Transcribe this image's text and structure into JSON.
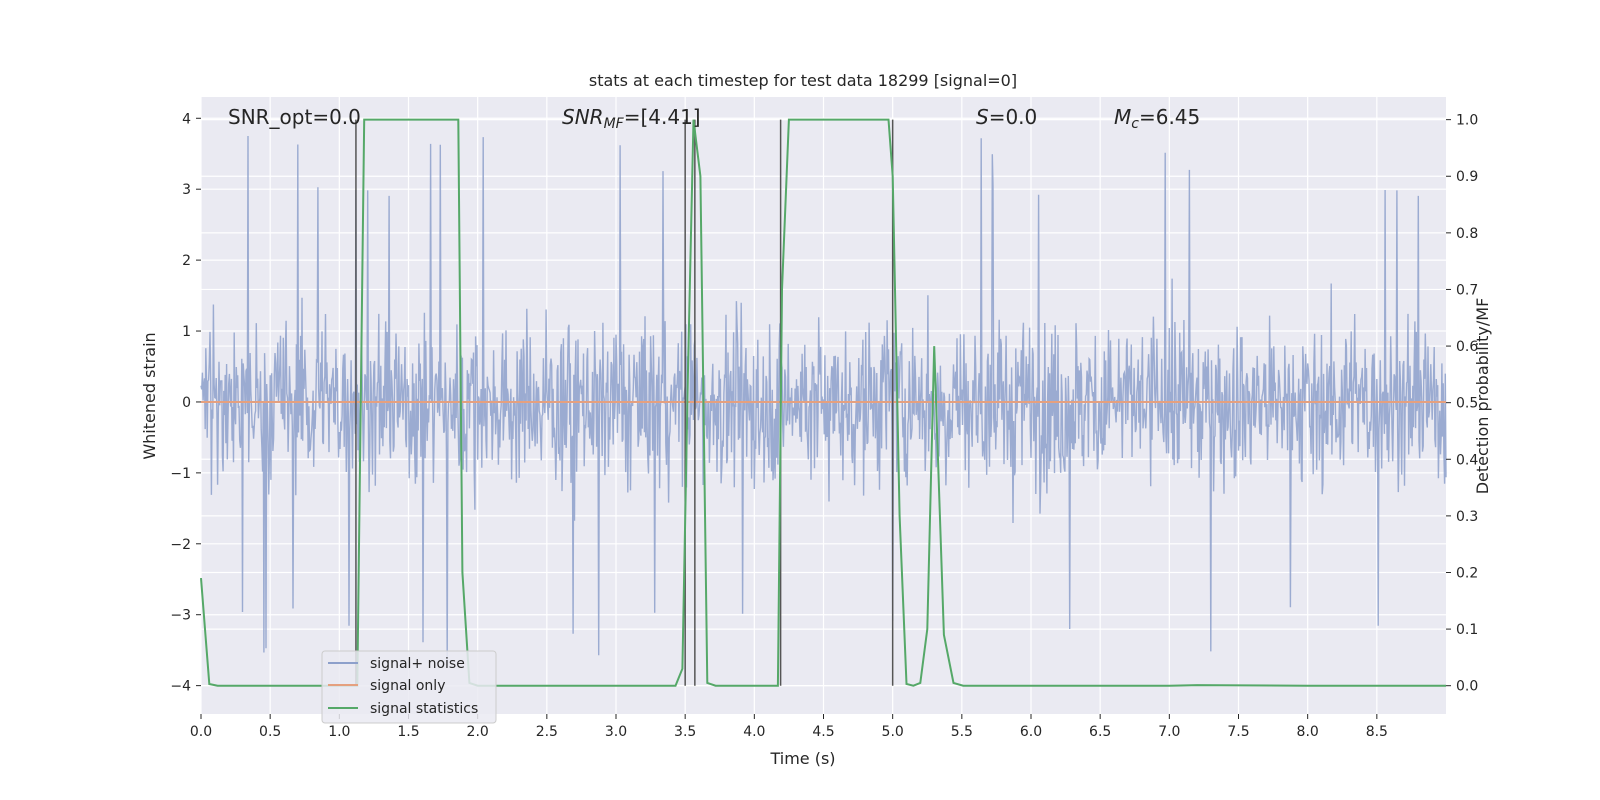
{
  "chart_data": {
    "type": "line",
    "title": "stats at each timestep for test data 18299 [signal=0]",
    "xlabel": "Time (s)",
    "ylabel_left": "Whitened strain",
    "ylabel_right": "Detection probability/MF",
    "xlim": [
      0.0,
      9.0
    ],
    "ylim_left": [
      -4.4,
      4.3
    ],
    "ylim_right": [
      -0.05,
      1.04
    ],
    "x_ticks": [
      "0.0",
      "0.5",
      "1.0",
      "1.5",
      "2.0",
      "2.5",
      "3.0",
      "3.5",
      "4.0",
      "4.5",
      "5.0",
      "5.5",
      "6.0",
      "6.5",
      "7.0",
      "7.5",
      "8.0",
      "8.5"
    ],
    "x_tick_values": [
      0.0,
      0.5,
      1.0,
      1.5,
      2.0,
      2.5,
      3.0,
      3.5,
      4.0,
      4.5,
      5.0,
      5.5,
      6.0,
      6.5,
      7.0,
      7.5,
      8.0,
      8.5
    ],
    "y_left_ticks": [
      "4",
      "3",
      "2",
      "1",
      "0",
      "−1",
      "−2",
      "−3",
      "−4"
    ],
    "y_left_tick_values": [
      4,
      3,
      2,
      1,
      0,
      -1,
      -2,
      -3,
      -4
    ],
    "y_right_ticks": [
      "1.0",
      "0.9",
      "0.8",
      "0.7",
      "0.6",
      "0.5",
      "0.4",
      "0.3",
      "0.2",
      "0.1",
      "0.0"
    ],
    "y_right_tick_values": [
      1.0,
      0.9,
      0.8,
      0.7,
      0.6,
      0.5,
      0.4,
      0.3,
      0.2,
      0.1,
      0.0
    ],
    "grid": true,
    "legend_placement": "lower-left",
    "annotations": {
      "snr_opt": "SNR_opt=0.0",
      "snr_mf": "SNR",
      "snr_mf_sub": "MF",
      "snr_mf_val": "=[4.41]",
      "s_label": "S",
      "s_val": "=0.0",
      "mc_label": "M",
      "mc_sub": "c",
      "mc_val": "=6.45"
    },
    "series": [
      {
        "name": "signal+ noise",
        "color": "#8da0cb",
        "axis": "left",
        "kind": "noise",
        "x_range": [
          0.0,
          9.0
        ],
        "typical_abs_max": 2.5,
        "peak_max": 3.9,
        "peak_min": -4.0
      },
      {
        "name": "signal only",
        "color": "#e5a07f",
        "axis": "left",
        "x": [
          0.0,
          9.0
        ],
        "y": [
          0.0,
          0.0
        ]
      },
      {
        "name": "signal statistics",
        "color": "#55a868",
        "axis": "right",
        "x": [
          0.0,
          0.06,
          0.12,
          0.5,
          1.0,
          1.1,
          1.13,
          1.18,
          1.5,
          1.86,
          1.89,
          1.94,
          2.0,
          2.5,
          3.0,
          3.43,
          3.48,
          3.52,
          3.56,
          3.61,
          3.66,
          3.72,
          3.8,
          4.17,
          4.2,
          4.25,
          4.5,
          4.97,
          5.0,
          5.05,
          5.1,
          5.15,
          5.2,
          5.25,
          5.3,
          5.37,
          5.44,
          5.51,
          6.0,
          7.0,
          7.2,
          8.0,
          9.0
        ],
        "y": [
          0.19,
          0.003,
          0.0,
          0.0,
          0.0,
          0.0,
          0.0,
          1.0,
          1.0,
          1.0,
          0.2,
          0.005,
          0.0,
          0.0,
          0.0,
          0.0,
          0.03,
          0.55,
          1.0,
          0.9,
          0.005,
          0.0,
          0.0,
          0.0,
          0.7,
          1.0,
          1.0,
          1.0,
          0.9,
          0.3,
          0.003,
          0.0,
          0.005,
          0.1,
          0.6,
          0.09,
          0.005,
          0.0,
          0.0,
          0.0,
          0.001,
          0.0,
          0.0
        ]
      }
    ],
    "vertical_markers_x": [
      1.12,
      3.5,
      3.57,
      4.19,
      5.0
    ]
  }
}
